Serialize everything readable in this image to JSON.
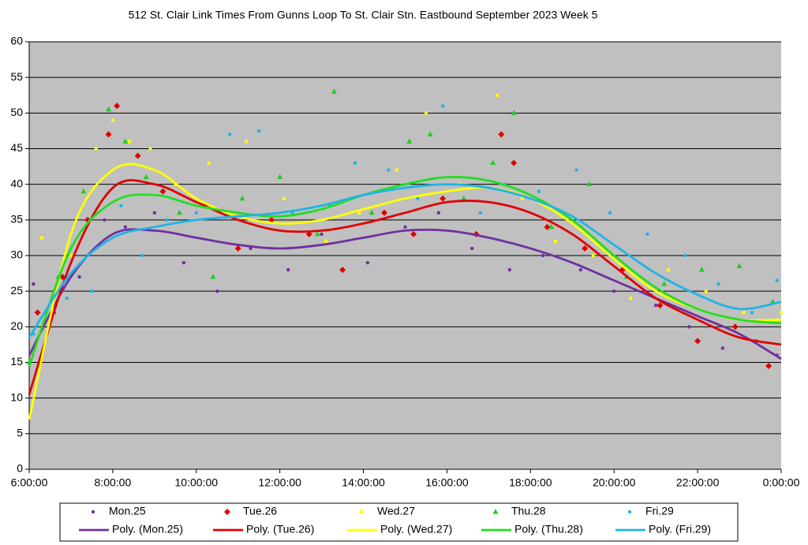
{
  "chart_data": {
    "type": "scatter",
    "title": "512 St. Clair Link Times From Gunns Loop To St. Clair Stn. Eastbound September 2023  Week 5",
    "xlim": [
      6,
      24
    ],
    "xticks": [
      {
        "value": 6,
        "label": "6:00:00"
      },
      {
        "value": 8,
        "label": "8:00:00"
      },
      {
        "value": 10,
        "label": "10:00:00"
      },
      {
        "value": 12,
        "label": "12:00:00"
      },
      {
        "value": 14,
        "label": "14:00:00"
      },
      {
        "value": 16,
        "label": "16:00:00"
      },
      {
        "value": 18,
        "label": "18:00:00"
      },
      {
        "value": 20,
        "label": "20:00:00"
      },
      {
        "value": 22,
        "label": "22:00:00"
      },
      {
        "value": 24,
        "label": "0:00:00"
      }
    ],
    "ylim": [
      0,
      60
    ],
    "yticks": [
      0,
      5,
      10,
      15,
      20,
      25,
      30,
      35,
      40,
      45,
      50,
      55,
      60
    ],
    "grid": true,
    "background": "#c0c0c0",
    "legend": "bottom",
    "series": [
      {
        "name": "Mon.25",
        "type": "scatter",
        "marker": "circle",
        "color": "#7030a0",
        "x": [
          6.1,
          6.6,
          7.2,
          7.8,
          8.3,
          9.0,
          9.7,
          10.5,
          11.3,
          12.2,
          13.0,
          14.1,
          15.0,
          15.8,
          16.6,
          17.5,
          18.3,
          19.2,
          20.0,
          21.0,
          21.8,
          22.6,
          23.4,
          23.9
        ],
        "values": [
          26,
          22,
          27,
          35,
          34,
          36,
          29,
          25,
          31,
          28,
          33,
          29,
          34,
          36,
          31,
          28,
          30,
          28,
          25,
          23,
          20,
          17,
          18,
          16
        ]
      },
      {
        "name": "Tue.26",
        "type": "scatter",
        "marker": "diamond",
        "color": "#e00000",
        "x": [
          6.2,
          6.8,
          7.4,
          7.9,
          8.1,
          8.6,
          9.2,
          10.2,
          11.0,
          11.8,
          12.7,
          13.5,
          14.5,
          15.2,
          15.9,
          16.7,
          17.3,
          17.6,
          18.4,
          19.3,
          20.2,
          21.1,
          22.0,
          22.9,
          23.7
        ],
        "values": [
          22,
          27,
          35,
          47,
          51,
          44,
          39,
          37,
          31,
          35,
          33,
          28,
          36,
          33,
          38,
          33,
          47,
          43,
          34,
          31,
          28,
          23,
          18,
          20,
          14.5
        ]
      },
      {
        "name": "Wed.27",
        "type": "scatter",
        "marker": "square",
        "color": "#ffff00",
        "x": [
          6.3,
          7.0,
          7.6,
          8.0,
          8.4,
          8.9,
          9.5,
          10.3,
          11.2,
          12.1,
          13.1,
          13.9,
          14.8,
          15.5,
          16.3,
          17.2,
          17.8,
          18.6,
          19.5,
          20.4,
          21.3,
          22.2,
          23.1,
          24.0
        ],
        "values": [
          32.5,
          30,
          45,
          49,
          46,
          45,
          40,
          43,
          46,
          38,
          32,
          36,
          42,
          50,
          40,
          52.5,
          38,
          32,
          30,
          24,
          28,
          25,
          22,
          22
        ]
      },
      {
        "name": "Thu.28",
        "type": "scatter",
        "marker": "triangle",
        "color": "#22cc22",
        "x": [
          6.0,
          6.7,
          7.3,
          7.9,
          8.3,
          8.8,
          9.6,
          10.4,
          11.1,
          12.0,
          12.9,
          13.3,
          14.2,
          15.1,
          15.6,
          16.4,
          17.1,
          17.6,
          18.5,
          19.4,
          20.3,
          21.2,
          22.1,
          23.0,
          23.8
        ],
        "values": [
          15,
          27,
          39,
          50.5,
          46,
          41,
          36,
          27,
          38,
          41,
          33,
          53,
          36,
          46,
          47,
          38,
          43,
          50,
          34,
          40,
          27,
          26,
          28,
          28.5,
          23.5
        ]
      },
      {
        "name": "Fri.29",
        "type": "scatter",
        "marker": "circle",
        "color": "#1fb4e6",
        "x": [
          6.1,
          6.9,
          7.5,
          8.2,
          8.7,
          9.3,
          10.0,
          10.8,
          11.5,
          12.3,
          13.2,
          13.8,
          14.6,
          15.3,
          15.9,
          16.8,
          17.4,
          18.2,
          19.1,
          19.9,
          20.8,
          21.7,
          22.5,
          23.3,
          23.9
        ],
        "values": [
          19,
          24,
          25,
          37,
          30,
          35,
          36,
          47,
          47.5,
          36,
          37,
          43,
          42,
          38,
          51,
          36,
          40,
          39,
          42,
          36,
          33,
          30,
          26,
          22,
          26.5
        ]
      },
      {
        "name": "Poly. (Mon.25)",
        "type": "line",
        "color": "#7030a0",
        "x": [
          6,
          7,
          8,
          9,
          10,
          11,
          12,
          13,
          14,
          15,
          16,
          17,
          18,
          19,
          20,
          21,
          22,
          23,
          24
        ],
        "values": [
          16,
          27,
          33,
          33.5,
          32.5,
          31.5,
          31,
          31.5,
          32.5,
          33.5,
          33.5,
          32.5,
          31,
          29,
          26.5,
          24,
          21.5,
          19,
          15.5
        ]
      },
      {
        "name": "Poly. (Tue.26)",
        "type": "line",
        "color": "#e00000",
        "x": [
          6,
          7,
          8,
          9,
          10,
          11,
          12,
          13,
          14,
          15,
          16,
          17,
          18,
          19,
          20,
          21,
          22,
          23,
          24
        ],
        "values": [
          10.5,
          29,
          39.5,
          40,
          37.5,
          35,
          33.5,
          33.5,
          34.5,
          36,
          37.5,
          37.5,
          36,
          33,
          28.5,
          24,
          21,
          18.5,
          17.5
        ]
      },
      {
        "name": "Poly. (Wed.27)",
        "type": "line",
        "color": "#ffff00",
        "x": [
          6,
          7,
          8,
          9,
          10,
          11,
          12,
          13,
          14,
          15,
          16,
          17,
          18,
          19,
          20,
          21,
          22,
          23,
          24
        ],
        "values": [
          7,
          33,
          42,
          42,
          38,
          35.5,
          34.5,
          35,
          36.5,
          38,
          39,
          39.5,
          38,
          34.5,
          29.5,
          25,
          22.5,
          21,
          21
        ]
      },
      {
        "name": "Poly. (Thu.28)",
        "type": "line",
        "color": "#22dd22",
        "x": [
          6,
          7,
          8,
          9,
          10,
          11,
          12,
          13,
          14,
          15,
          16,
          17,
          18,
          19,
          20,
          21,
          22,
          23,
          24
        ],
        "values": [
          14.5,
          31,
          37.5,
          38.5,
          37,
          36,
          35.5,
          36.5,
          38.5,
          40,
          41,
          40.5,
          38.5,
          35,
          30,
          25.5,
          22.5,
          21,
          20.5
        ]
      },
      {
        "name": "Poly. (Fri.29)",
        "type": "line",
        "color": "#1fb4e6",
        "x": [
          6,
          7,
          8,
          9,
          10,
          11,
          12,
          13,
          14,
          15,
          16,
          17,
          18,
          19,
          20,
          21,
          22,
          23,
          24
        ],
        "values": [
          18.5,
          27.5,
          32.5,
          34,
          35,
          35.5,
          36,
          37,
          38.5,
          39.5,
          40,
          39.5,
          38,
          35.5,
          31.5,
          27.5,
          24.5,
          22.5,
          23.5
        ]
      }
    ]
  }
}
